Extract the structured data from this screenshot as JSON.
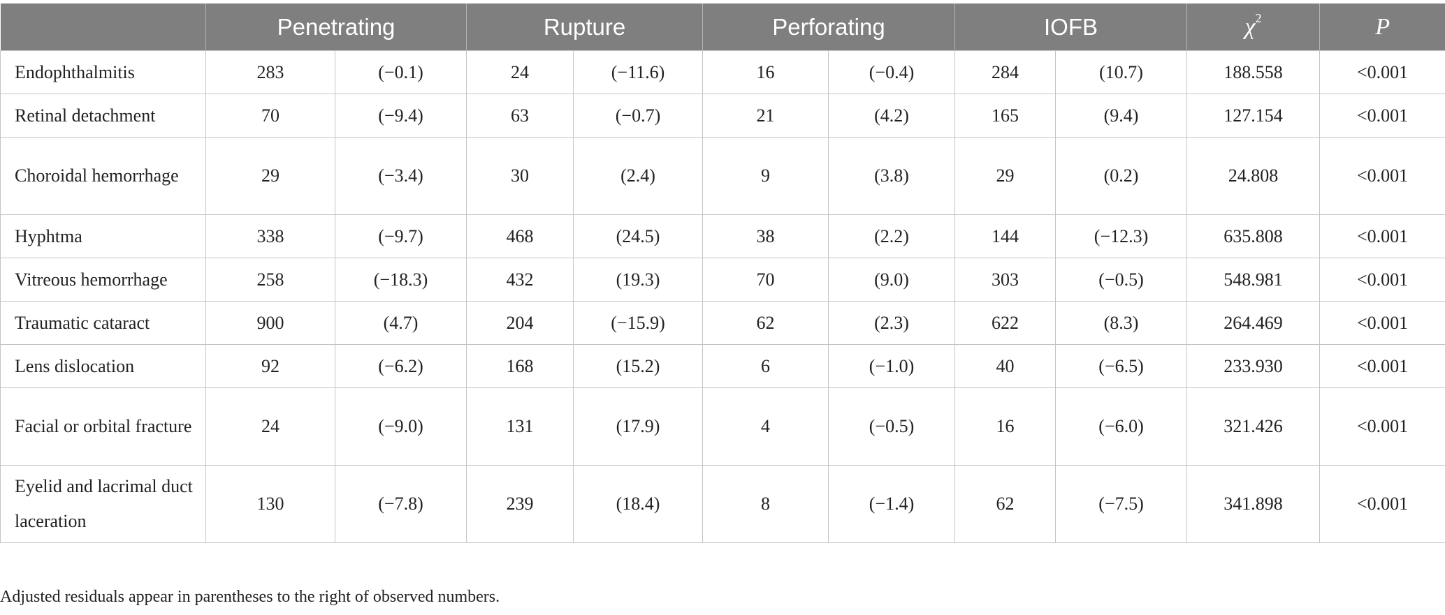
{
  "table": {
    "headers": {
      "label": "",
      "penetrating": "Penetrating",
      "rupture": "Rupture",
      "perforating": "Perforating",
      "iofb": "IOFB",
      "chi_symbol": "χ",
      "chi_exp": "2",
      "p": "P"
    },
    "rows": [
      {
        "label": "Endophthalmitis",
        "pen_n": "283",
        "pen_r": "(−0.1)",
        "rup_n": "24",
        "rup_r": "(−11.6)",
        "perf_n": "16",
        "perf_r": "(−0.4)",
        "iofb_n": "284",
        "iofb_r": "(10.7)",
        "chi2": "188.558",
        "p": "<0.001"
      },
      {
        "label": "Retinal detachment",
        "pen_n": "70",
        "pen_r": "(−9.4)",
        "rup_n": "63",
        "rup_r": "(−0.7)",
        "perf_n": "21",
        "perf_r": "(4.2)",
        "iofb_n": "165",
        "iofb_r": "(9.4)",
        "chi2": "127.154",
        "p": "<0.001"
      },
      {
        "label": "Choroidal hemorrhage",
        "pen_n": "29",
        "pen_r": "(−3.4)",
        "rup_n": "30",
        "rup_r": "(2.4)",
        "perf_n": "9",
        "perf_r": "(3.8)",
        "iofb_n": "29",
        "iofb_r": "(0.2)",
        "chi2": "24.808",
        "p": "<0.001"
      },
      {
        "label": "Hyphtma",
        "pen_n": "338",
        "pen_r": "(−9.7)",
        "rup_n": "468",
        "rup_r": "(24.5)",
        "perf_n": "38",
        "perf_r": "(2.2)",
        "iofb_n": "144",
        "iofb_r": "(−12.3)",
        "chi2": "635.808",
        "p": "<0.001"
      },
      {
        "label": "Vitreous hemorrhage",
        "pen_n": "258",
        "pen_r": "(−18.3)",
        "rup_n": "432",
        "rup_r": "(19.3)",
        "perf_n": "70",
        "perf_r": "(9.0)",
        "iofb_n": "303",
        "iofb_r": "(−0.5)",
        "chi2": "548.981",
        "p": "<0.001"
      },
      {
        "label": "Traumatic cataract",
        "pen_n": "900",
        "pen_r": "(4.7)",
        "rup_n": "204",
        "rup_r": "(−15.9)",
        "perf_n": "62",
        "perf_r": "(2.3)",
        "iofb_n": "622",
        "iofb_r": "(8.3)",
        "chi2": "264.469",
        "p": "<0.001"
      },
      {
        "label": "Lens dislocation",
        "pen_n": "92",
        "pen_r": "(−6.2)",
        "rup_n": "168",
        "rup_r": "(15.2)",
        "perf_n": "6",
        "perf_r": "(−1.0)",
        "iofb_n": "40",
        "iofb_r": "(−6.5)",
        "chi2": "233.930",
        "p": "<0.001"
      },
      {
        "label": "Facial or orbital fracture",
        "pen_n": "24",
        "pen_r": "(−9.0)",
        "rup_n": "131",
        "rup_r": "(17.9)",
        "perf_n": "4",
        "perf_r": "(−0.5)",
        "iofb_n": "16",
        "iofb_r": "(−6.0)",
        "chi2": "321.426",
        "p": "<0.001"
      },
      {
        "label": "Eyelid and lacrimal duct laceration",
        "pen_n": "130",
        "pen_r": "(−7.8)",
        "rup_n": "239",
        "rup_r": "(18.4)",
        "perf_n": "8",
        "perf_r": "(−1.4)",
        "iofb_n": "62",
        "iofb_r": "(−7.5)",
        "chi2": "341.898",
        "p": "<0.001"
      }
    ]
  },
  "footnote": "Adjusted residuals appear in parentheses to the right of observed numbers."
}
